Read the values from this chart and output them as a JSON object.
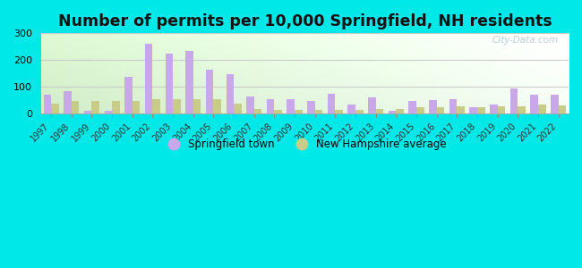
{
  "title": "Number of permits per 10,000 Springfield, NH residents",
  "years": [
    1997,
    1998,
    1999,
    2000,
    2001,
    2002,
    2003,
    2004,
    2005,
    2006,
    2007,
    2008,
    2009,
    2010,
    2011,
    2012,
    2013,
    2014,
    2015,
    2016,
    2017,
    2018,
    2019,
    2020,
    2021,
    2022
  ],
  "springfield": [
    70,
    83,
    10,
    10,
    138,
    262,
    225,
    235,
    163,
    148,
    62,
    52,
    52,
    45,
    72,
    33,
    60,
    10,
    45,
    50,
    52,
    22,
    33,
    93,
    70,
    70
  ],
  "nh_avg": [
    38,
    48,
    48,
    48,
    48,
    52,
    52,
    52,
    52,
    38,
    18,
    12,
    12,
    12,
    12,
    12,
    18,
    18,
    22,
    22,
    25,
    22,
    25,
    25,
    32,
    30
  ],
  "springfield_color": "#c8a8e8",
  "nh_avg_color": "#c8cc88",
  "background_outer": "#00e8e8",
  "ylim": [
    0,
    300
  ],
  "yticks": [
    0,
    100,
    200,
    300
  ],
  "grid_color": "#cccccc",
  "watermark": "City-Data.com",
  "legend_springfield": "Springfield town",
  "legend_nh": "New Hampshire average",
  "title_fontsize": 12.5,
  "bar_width": 0.38
}
